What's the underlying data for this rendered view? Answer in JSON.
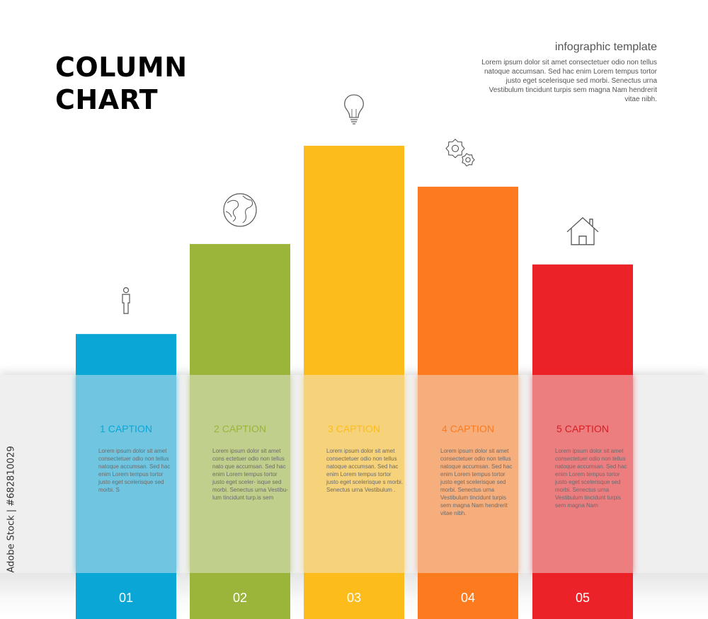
{
  "header": {
    "title_line1": "COLUMN",
    "title_line2": "CHART",
    "subtitle": "infographic template",
    "intro": "Lorem ipsum dolor sit amet consectetuer odio non tellus natoque accumsan. Sed hac enim Lorem tempus tortor justo eget scelerisque sed morbi. Senectus urna Vestibulum tincidunt turpis sem magna Nam hendrerit vitae nibh."
  },
  "side_id": "Adobe Stock | #682810029",
  "colors": {
    "c1": "#0aa6d6",
    "c2": "#9ab53a",
    "c3": "#fcbc1c",
    "c4": "#fd7a1f",
    "c5": "#eb2227"
  },
  "chart_data": {
    "type": "bar",
    "categories": [
      "01",
      "02",
      "03",
      "04",
      "05"
    ],
    "values": [
      1,
      3.2,
      5.6,
      4.6,
      2.7
    ],
    "ylim": [
      0,
      6
    ],
    "grid": false,
    "legend": "none",
    "bar_icons": [
      "person-icon",
      "globe-icon",
      "lightbulb-icon",
      "gears-icon",
      "house-icon"
    ]
  },
  "columns": [
    {
      "caption": "1 CAPTION",
      "number": "01",
      "text": "Lorem ipsum dolor sit amet consectetuer odio non tellus natoque accumsan. Sed hac enim Lorem tempus tortor justo eget scelerisque sed morbi. S"
    },
    {
      "caption": "2 CAPTION",
      "number": "02",
      "text": "Lorem ipsum dolor sit amet cons ectetuer odio non tellus nato que accumsan. Sed hac enim Lorem tempus tortor justo eget sceler- isque sed morbi. Senectus urna Vestibu- lum tincidunt turp.is sem"
    },
    {
      "caption": "3 CAPTION",
      "number": "03",
      "text": "Lorem ipsum dolor sit amet consectetuer odio non tellus natoque accumsan. Sed hac enim Lorem tempus tortor justo eget scelerisque s morbi. Senectus urna Vestibulum ."
    },
    {
      "caption": "4 CAPTION",
      "number": "04",
      "text": "Lorem ipsum dolor sit amet consectetuer odio non tellus natoque accumsan. Sed hac enim Lorem tempus tortor justo eget scelerisque sed morbi. Senectus urna Vestibulum tincidunt turpis sem magna Nam hendrerit vitae nibh."
    },
    {
      "caption": "5 CAPTION",
      "number": "05",
      "text": "Lorem ipsum dolor sit amet consectetuer odio non tellus natoque accumsan. Sed hac enim Lorem tempus tortor justo eget scelerisque sed morbi. Senectus urna Vestibulum tincidunt turpis sem magna Nam"
    }
  ]
}
